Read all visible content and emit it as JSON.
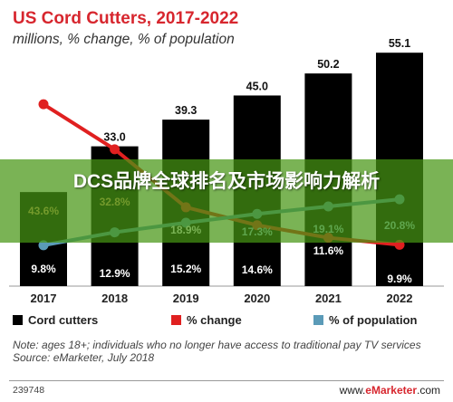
{
  "header": {
    "title": "US Cord Cutters, 2017-2022",
    "subtitle": "millions, % change, % of population"
  },
  "chart_data": {
    "type": "bar",
    "categories": [
      "2017",
      "2018",
      "2019",
      "2020",
      "2021",
      "2022"
    ],
    "series": [
      {
        "name": "Cord cutters",
        "type": "bar",
        "values": [
          22.2,
          33.0,
          39.3,
          45.0,
          50.2,
          55.1
        ],
        "labels": [
          "",
          "33.0",
          "39.3",
          "45.0",
          "50.2",
          "55.1"
        ],
        "color": "#000000"
      },
      {
        "name": "% change",
        "type": "line",
        "values": [
          43.6,
          32.8,
          18.9,
          14.6,
          11.6,
          9.9
        ],
        "labels": [
          "43.6%",
          "32.8%",
          "18.9%",
          "14.6%",
          "11.6%",
          "9.9%"
        ],
        "color": "#e02020"
      },
      {
        "name": "% of population",
        "type": "line",
        "values": [
          9.8,
          12.9,
          15.2,
          17.3,
          19.1,
          20.8
        ],
        "labels": [
          "9.8%",
          "12.9%",
          "15.2%",
          "17.3%",
          "19.1%",
          "20.8%"
        ],
        "color": "#5b9bb8"
      }
    ],
    "ylim": [
      0,
      60
    ]
  },
  "legend": {
    "cord": "Cord cutters",
    "change": "% change",
    "population": "% of population"
  },
  "note": {
    "line1": "Note: ages 18+; individuals who no longer have access to traditional pay TV services",
    "line2": "Source: eMarketer, July 2018"
  },
  "footer": {
    "id": "239748",
    "site_prefix": "www.",
    "site_brand": "eMarketer",
    "site_suffix": ".com"
  },
  "overlay": {
    "banner_text": "DCS品牌全球排名及市场影响力解析"
  }
}
